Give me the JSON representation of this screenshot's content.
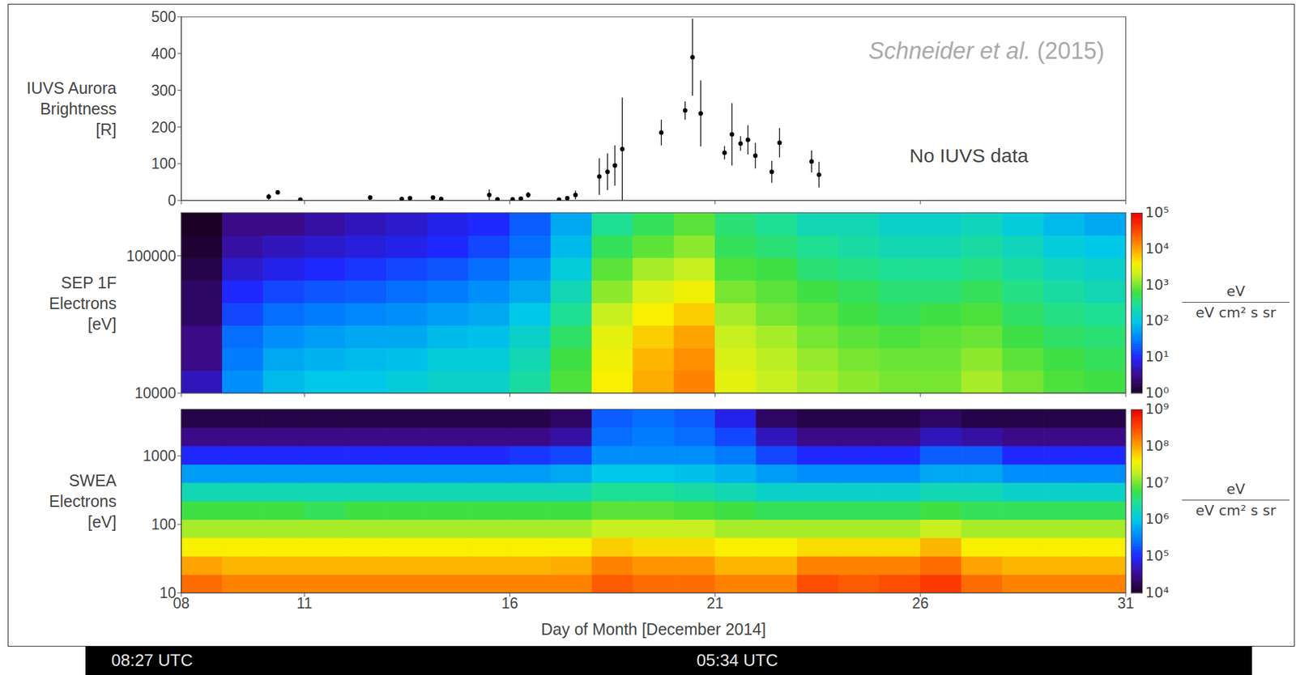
{
  "chart_data": [
    {
      "type": "scatter",
      "y_label": [
        "IUVS Aurora",
        "Brightness",
        "[R]"
      ],
      "annotations": [
        "Schneider et al. (2015)",
        "No IUVS data"
      ],
      "color": "#000000",
      "marker": "circle",
      "tick_labels": "y",
      "xlim": [
        8,
        31
      ],
      "xticks": [
        {
          "value": 8,
          "label": "08"
        },
        11,
        16,
        21,
        26,
        31
      ],
      "ylim": [
        0,
        500
      ],
      "yticks": [
        0,
        100,
        200,
        300,
        400,
        500
      ],
      "x": [
        10.13,
        10.35,
        10.9,
        12.6,
        13.37,
        13.57,
        14.13,
        14.33,
        15.5,
        15.7,
        16.07,
        16.27,
        16.45,
        17.2,
        17.4,
        17.6,
        18.18,
        18.38,
        18.56,
        18.74,
        19.69,
        20.27,
        20.45,
        20.65,
        21.23,
        21.41,
        21.62,
        21.8,
        21.98,
        22.38,
        22.57,
        23.35,
        23.53
      ],
      "values": [
        10,
        22,
        2,
        8,
        4,
        6,
        8,
        4,
        15,
        3,
        3,
        5,
        15,
        2,
        6,
        15,
        65,
        78,
        95,
        140,
        185,
        245,
        390,
        237,
        130,
        180,
        155,
        165,
        122,
        78,
        157,
        106,
        70
      ],
      "errors": [
        8,
        4,
        3,
        3,
        3,
        3,
        3,
        3,
        15,
        4,
        3,
        4,
        8,
        2,
        4,
        12,
        50,
        50,
        55,
        140,
        35,
        25,
        105,
        90,
        18,
        85,
        20,
        40,
        35,
        30,
        40,
        30,
        35
      ]
    },
    {
      "type": "heatmap",
      "y_label": [
        "SEP 1F",
        "Electrons",
        "[eV]"
      ],
      "log": "y",
      "tick_labels": "y",
      "xlim": [
        8,
        31
      ],
      "xticks": [
        {
          "value": 8,
          "label": "08"
        },
        11,
        16,
        21,
        26,
        31
      ],
      "ylim": [
        10000,
        206000
      ],
      "yticks": [
        10000,
        100000
      ],
      "x_edges": [
        8,
        9,
        10,
        11,
        12,
        13,
        14,
        15,
        16,
        17,
        18,
        19,
        20,
        21,
        22,
        23,
        24,
        25,
        26,
        27,
        28,
        29,
        30,
        31
      ],
      "y_edges": [
        10000,
        14600,
        21300,
        31100,
        45400,
        66300,
        96800,
        141000,
        206000
      ],
      "cells": [
        [
          5,
          3,
          3,
          2,
          2,
          1.5,
          1.2,
          1
        ],
        [
          40,
          30,
          25,
          15,
          10,
          6,
          4,
          3
        ],
        [
          80,
          60,
          40,
          25,
          15,
          8,
          5,
          3
        ],
        [
          100,
          70,
          50,
          30,
          18,
          10,
          6,
          4
        ],
        [
          100,
          80,
          60,
          35,
          20,
          12,
          7,
          5
        ],
        [
          120,
          90,
          60,
          40,
          25,
          15,
          8,
          6
        ],
        [
          150,
          120,
          80,
          50,
          30,
          18,
          10,
          8
        ],
        [
          150,
          120,
          90,
          60,
          40,
          25,
          15,
          10
        ],
        [
          250,
          200,
          150,
          100,
          60,
          40,
          25,
          20
        ],
        [
          700,
          600,
          450,
          300,
          200,
          120,
          80,
          60
        ],
        [
          4000,
          3500,
          3000,
          2000,
          1200,
          800,
          500,
          300
        ],
        [
          9000,
          8000,
          6000,
          4000,
          2500,
          1500,
          800,
          500
        ],
        [
          15000,
          13000,
          10000,
          6000,
          3500,
          2000,
          1200,
          800
        ],
        [
          3000,
          2500,
          2000,
          1500,
          1000,
          700,
          500,
          400
        ],
        [
          2000,
          1800,
          1500,
          1000,
          800,
          600,
          400,
          300
        ],
        [
          1500,
          1300,
          1000,
          800,
          600,
          400,
          300,
          200
        ],
        [
          1200,
          1000,
          800,
          600,
          500,
          350,
          250,
          200
        ],
        [
          1000,
          900,
          700,
          500,
          400,
          300,
          200,
          150
        ],
        [
          1000,
          900,
          800,
          600,
          400,
          300,
          200,
          150
        ],
        [
          1500,
          1200,
          900,
          700,
          500,
          350,
          250,
          180
        ],
        [
          1000,
          800,
          600,
          450,
          350,
          250,
          180,
          120
        ],
        [
          700,
          600,
          450,
          350,
          250,
          180,
          120,
          80
        ],
        [
          600,
          500,
          400,
          300,
          200,
          150,
          100,
          60
        ]
      ],
      "colorbar": {
        "range": [
          1,
          100000
        ],
        "log": true,
        "ticks": [
          {
            "value": 1,
            "label": "10⁰"
          },
          {
            "value": 10,
            "label": "10¹"
          },
          {
            "value": 100,
            "label": "10²"
          },
          {
            "value": 1000,
            "label": "10³"
          },
          {
            "value": 10000,
            "label": "10⁴"
          },
          {
            "value": 100000,
            "label": "10⁵"
          }
        ],
        "label": [
          "eV",
          "eV cm² s sr"
        ]
      }
    },
    {
      "type": "heatmap",
      "y_label": [
        "SWEA",
        "Electrons",
        "[eV]"
      ],
      "log": "y",
      "x_label": "Day of Month [December 2014]",
      "xlim": [
        8,
        31
      ],
      "xticks": [
        {
          "value": 8,
          "label": "08"
        },
        11,
        16,
        21,
        26,
        31
      ],
      "ylim": [
        10,
        4800
      ],
      "yticks": [
        10,
        100,
        1000
      ],
      "x_edges": [
        8,
        9,
        10,
        11,
        12,
        13,
        14,
        15,
        16,
        17,
        18,
        19,
        20,
        21,
        22,
        23,
        24,
        25,
        26,
        27,
        28,
        29,
        30,
        31
      ],
      "y_edges": [
        10,
        18.5,
        34.4,
        63.7,
        118,
        219,
        406,
        753,
        1400,
        2590,
        4800
      ],
      "cells": [
        [
          200000000.0,
          100000000.0,
          40000000.0,
          15000000.0,
          6000000.0,
          2000000.0,
          500000.0,
          100000.0,
          30000.0,
          15000.0
        ],
        [
          150000000.0,
          80000000.0,
          40000000.0,
          15000000.0,
          6000000.0,
          2000000.0,
          500000.0,
          100000.0,
          30000.0,
          15000.0
        ],
        [
          150000000.0,
          80000000.0,
          40000000.0,
          15000000.0,
          6000000.0,
          2000000.0,
          500000.0,
          100000.0,
          30000.0,
          15000.0
        ],
        [
          150000000.0,
          80000000.0,
          40000000.0,
          15000000.0,
          5000000.0,
          2000000.0,
          500000.0,
          100000.0,
          30000.0,
          15000.0
        ],
        [
          150000000.0,
          80000000.0,
          40000000.0,
          15000000.0,
          6000000.0,
          2000000.0,
          500000.0,
          100000.0,
          30000.0,
          15000.0
        ],
        [
          150000000.0,
          80000000.0,
          40000000.0,
          15000000.0,
          6000000.0,
          2000000.0,
          500000.0,
          100000.0,
          30000.0,
          15000.0
        ],
        [
          150000000.0,
          80000000.0,
          40000000.0,
          15000000.0,
          6000000.0,
          2000000.0,
          500000.0,
          100000.0,
          30000.0,
          15000.0
        ],
        [
          150000000.0,
          80000000.0,
          40000000.0,
          15000000.0,
          6000000.0,
          2000000.0,
          500000.0,
          100000.0,
          30000.0,
          15000.0
        ],
        [
          150000000.0,
          80000000.0,
          40000000.0,
          15000000.0,
          6000000.0,
          2000000.0,
          500000.0,
          120000.0,
          30000.0,
          15000.0
        ],
        [
          150000000.0,
          90000000.0,
          40000000.0,
          15000000.0,
          6000000.0,
          2000000.0,
          600000.0,
          150000.0,
          40000.0,
          20000.0
        ],
        [
          250000000.0,
          150000000.0,
          60000000.0,
          20000000.0,
          8000000.0,
          3000000.0,
          1000000.0,
          400000.0,
          250000.0,
          200000.0
        ],
        [
          200000000.0,
          120000000.0,
          50000000.0,
          20000000.0,
          8000000.0,
          3000000.0,
          1000000.0,
          400000.0,
          300000.0,
          250000.0
        ],
        [
          200000000.0,
          120000000.0,
          50000000.0,
          20000000.0,
          7000000.0,
          2500000.0,
          900000.0,
          400000.0,
          250000.0,
          200000.0
        ],
        [
          150000000.0,
          80000000.0,
          40000000.0,
          15000000.0,
          6000000.0,
          2000000.0,
          700000.0,
          300000.0,
          150000.0,
          80000.0
        ],
        [
          150000000.0,
          80000000.0,
          40000000.0,
          15000000.0,
          5000000.0,
          1500000.0,
          500000.0,
          150000.0,
          50000.0,
          20000.0
        ],
        [
          300000000.0,
          150000000.0,
          50000000.0,
          15000000.0,
          5000000.0,
          1500000.0,
          400000.0,
          100000.0,
          30000.0,
          15000.0
        ],
        [
          250000000.0,
          150000000.0,
          50000000.0,
          15000000.0,
          5000000.0,
          1500000.0,
          400000.0,
          100000.0,
          30000.0,
          15000.0
        ],
        [
          300000000.0,
          150000000.0,
          50000000.0,
          15000000.0,
          5000000.0,
          1500000.0,
          400000.0,
          100000.0,
          30000.0,
          15000.0
        ],
        [
          400000000.0,
          200000000.0,
          80000000.0,
          20000000.0,
          6000000.0,
          2000000.0,
          600000.0,
          200000.0,
          50000.0,
          20000.0
        ],
        [
          200000000.0,
          100000000.0,
          40000000.0,
          15000000.0,
          5000000.0,
          2000000.0,
          600000.0,
          200000.0,
          40000.0,
          15000.0
        ],
        [
          150000000.0,
          80000000.0,
          40000000.0,
          15000000.0,
          5000000.0,
          1500000.0,
          400000.0,
          100000.0,
          30000.0,
          15000.0
        ],
        [
          150000000.0,
          80000000.0,
          40000000.0,
          15000000.0,
          5000000.0,
          1500000.0,
          400000.0,
          100000.0,
          30000.0,
          15000.0
        ],
        [
          150000000.0,
          80000000.0,
          40000000.0,
          15000000.0,
          5000000.0,
          1500000.0,
          400000.0,
          100000.0,
          30000.0,
          15000.0
        ]
      ],
      "colorbar": {
        "range": [
          10000,
          1000000000
        ],
        "log": true,
        "ticks": [
          {
            "value": 10000,
            "label": "10⁴"
          },
          {
            "value": 100000,
            "label": "10⁵"
          },
          {
            "value": 1000000,
            "label": "10⁶"
          },
          {
            "value": 10000000,
            "label": "10⁷"
          },
          {
            "value": 100000000,
            "label": "10⁸"
          },
          {
            "value": 1000000000,
            "label": "10⁹"
          }
        ],
        "label": [
          "eV",
          "eV cm² s sr"
        ]
      }
    }
  ],
  "footer": [
    "08:27 UTC",
    "05:34 UTC"
  ]
}
